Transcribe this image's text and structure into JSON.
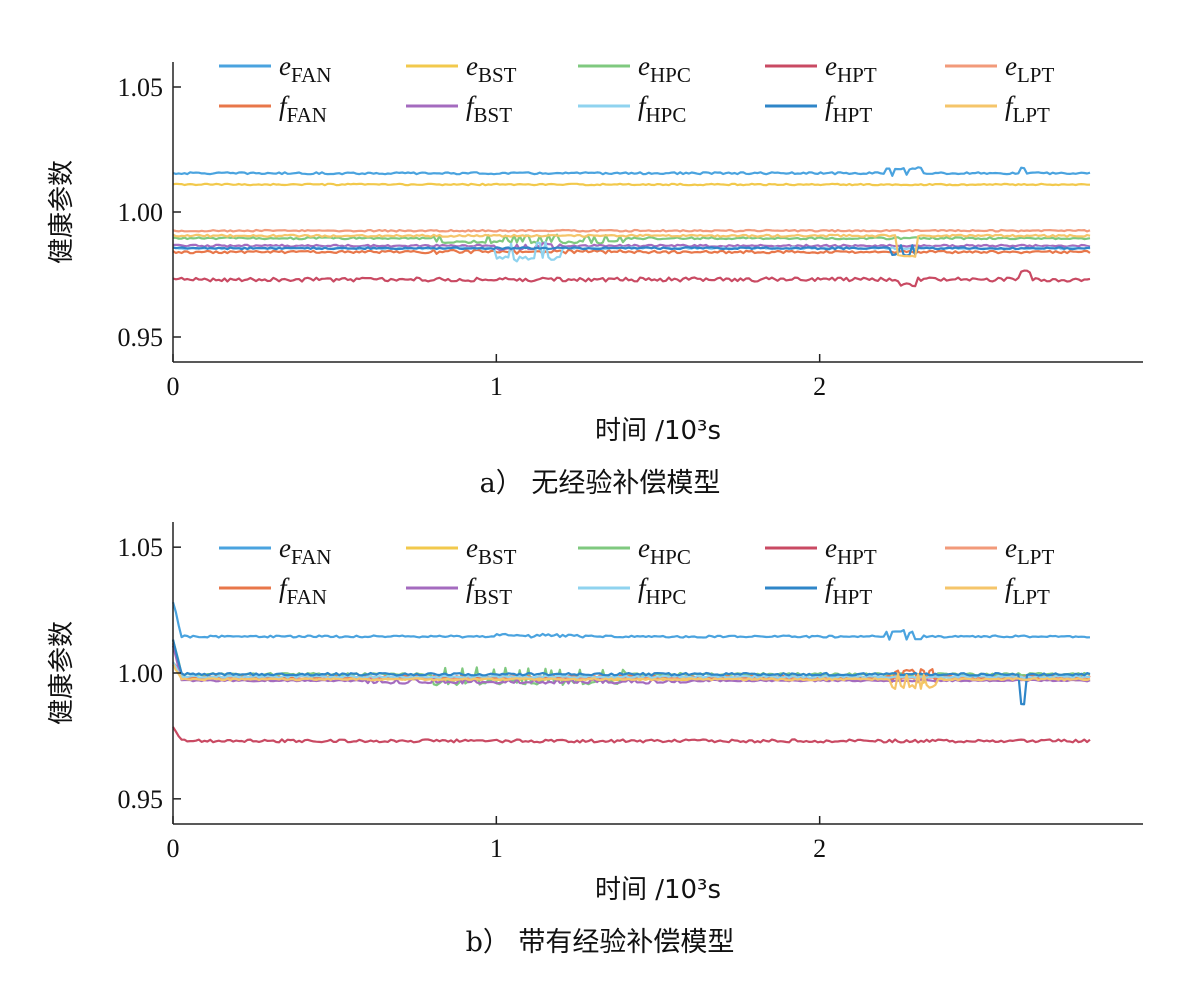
{
  "chart_data": [
    {
      "type": "line",
      "caption": "a） 无经验补偿模型",
      "xlabel": "时间 /10³s",
      "ylabel": "健康参数",
      "xlim": [
        0,
        3.0
      ],
      "ylim": [
        0.94,
        1.06
      ],
      "xticks": [
        "0",
        "1",
        "2"
      ],
      "yticks": [
        "0.95",
        "1.00",
        "1.05"
      ],
      "legend_position": "top",
      "series": [
        {
          "name": "e_FAN",
          "main": "e",
          "sub": "FAN",
          "color": "#4aa3df",
          "level": 1.0155,
          "noise": 0.0004,
          "events": [
            [
              2.2,
              2.32,
              0.0025
            ],
            [
              2.62,
              2.64,
              0.002
            ]
          ]
        },
        {
          "name": "e_BST",
          "main": "e",
          "sub": "BST",
          "color": "#f2c94c",
          "level": 1.011,
          "noise": 0.0003,
          "events": []
        },
        {
          "name": "e_HPC",
          "main": "e",
          "sub": "HPC",
          "color": "#7fc97f",
          "level": 0.9895,
          "noise": 0.0004,
          "events": [
            [
              0.8,
              1.4,
              -0.002
            ]
          ]
        },
        {
          "name": "e_HPT",
          "main": "e",
          "sub": "HPT",
          "color": "#c94a63",
          "level": 0.973,
          "noise": 0.0008,
          "events": [
            [
              2.25,
              2.3,
              -0.002
            ],
            [
              2.62,
              2.65,
              0.003
            ]
          ]
        },
        {
          "name": "e_LPT",
          "main": "e",
          "sub": "LPT",
          "color": "#f29a7a",
          "level": 0.9925,
          "noise": 0.0003,
          "events": []
        },
        {
          "name": "f_FAN",
          "main": "f",
          "sub": "FAN",
          "color": "#e8774a",
          "level": 0.984,
          "noise": 0.0005,
          "events": [
            [
              0.8,
              1.4,
              0.0005
            ]
          ]
        },
        {
          "name": "f_BST",
          "main": "f",
          "sub": "BST",
          "color": "#a46bbf",
          "level": 0.9865,
          "noise": 0.0004,
          "events": [
            [
              1.0,
              1.2,
              -0.0015
            ]
          ]
        },
        {
          "name": "f_HPC",
          "main": "f",
          "sub": "HPC",
          "color": "#8fd3ef",
          "level": 0.9855,
          "noise": 0.0004,
          "events": [
            [
              1.0,
              1.2,
              -0.005
            ]
          ]
        },
        {
          "name": "f_HPT",
          "main": "f",
          "sub": "HPT",
          "color": "#2f86c8",
          "level": 0.9855,
          "noise": 0.0004,
          "events": [
            [
              2.22,
              2.3,
              -0.003
            ]
          ]
        },
        {
          "name": "f_LPT",
          "main": "f",
          "sub": "LPT",
          "color": "#f5c56a",
          "level": 0.9905,
          "noise": 0.0004,
          "events": [
            [
              2.24,
              2.3,
              -0.008
            ]
          ]
        }
      ]
    },
    {
      "type": "line",
      "caption": "b） 带有经验补偿模型",
      "xlabel": "时间 /10³s",
      "ylabel": "健康参数",
      "xlim": [
        0,
        3.0
      ],
      "ylim": [
        0.94,
        1.06
      ],
      "xticks": [
        "0",
        "1",
        "2"
      ],
      "yticks": [
        "0.95",
        "1.00",
        "1.05"
      ],
      "legend_position": "top",
      "series": [
        {
          "name": "e_FAN",
          "main": "e",
          "sub": "FAN",
          "color": "#4aa3df",
          "level": 1.0145,
          "noise": 0.0004,
          "events": [
            [
              1.0,
              1.25,
              0.0008
            ],
            [
              2.2,
              2.32,
              0.0025
            ]
          ]
        },
        {
          "name": "e_BST",
          "main": "e",
          "sub": "BST",
          "color": "#f2c94c",
          "level": 0.9975,
          "noise": 0.0004,
          "events": [
            [
              2.22,
              2.36,
              0.002
            ]
          ]
        },
        {
          "name": "e_HPC",
          "main": "e",
          "sub": "HPC",
          "color": "#7fc97f",
          "level": 0.9995,
          "noise": 0.0005,
          "events": [
            [
              0.8,
              1.4,
              -0.004
            ]
          ]
        },
        {
          "name": "e_HPT",
          "main": "e",
          "sub": "HPT",
          "color": "#c94a63",
          "level": 0.973,
          "noise": 0.0006,
          "events": []
        },
        {
          "name": "e_LPT",
          "main": "e",
          "sub": "LPT",
          "color": "#f29a7a",
          "level": 0.998,
          "noise": 0.0003,
          "events": []
        },
        {
          "name": "f_FAN",
          "main": "f",
          "sub": "FAN",
          "color": "#e8774a",
          "level": 0.9985,
          "noise": 0.0005,
          "events": [
            [
              2.22,
              2.36,
              0.003
            ]
          ]
        },
        {
          "name": "f_BST",
          "main": "f",
          "sub": "BST",
          "color": "#a46bbf",
          "level": 0.997,
          "noise": 0.0003,
          "events": [
            [
              0.6,
              1.6,
              -0.001
            ]
          ]
        },
        {
          "name": "f_HPC",
          "main": "f",
          "sub": "HPC",
          "color": "#8fd3ef",
          "level": 0.9985,
          "noise": 0.0004,
          "events": []
        },
        {
          "name": "f_HPT",
          "main": "f",
          "sub": "HPT",
          "color": "#2f86c8",
          "level": 0.9995,
          "noise": 0.0005,
          "events": [
            [
              2.62,
              2.64,
              -0.012
            ]
          ]
        },
        {
          "name": "f_LPT",
          "main": "f",
          "sub": "LPT",
          "color": "#f5c56a",
          "level": 0.9975,
          "noise": 0.0004,
          "events": [
            [
              2.22,
              2.36,
              -0.004
            ]
          ]
        }
      ]
    }
  ]
}
